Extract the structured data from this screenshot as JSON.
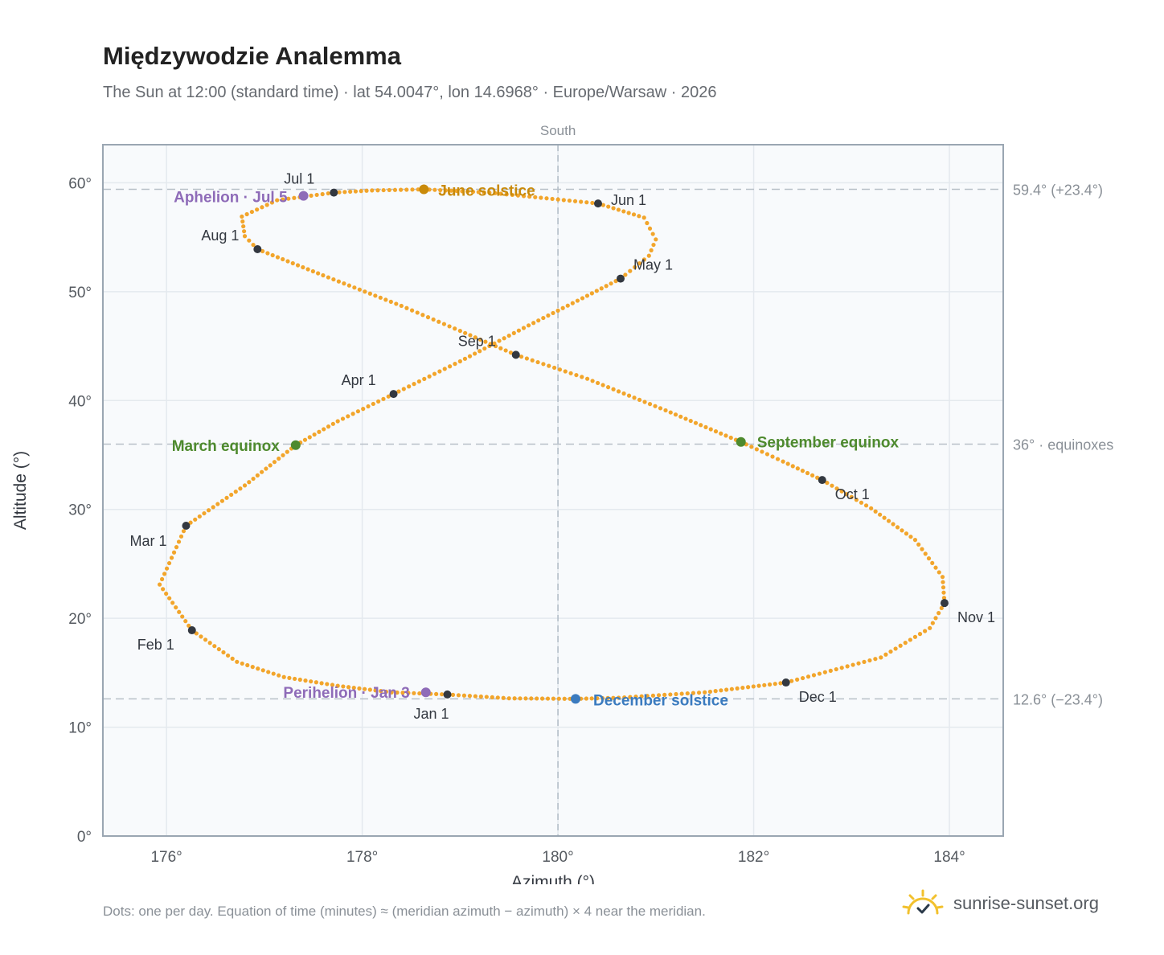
{
  "header": {
    "title": "Międzywodzie Analemma",
    "subtitle": "The Sun at 12:00 (standard time) · lat 54.0047°, lon 14.6968° · Europe/Warsaw · 2026"
  },
  "footer": {
    "note": "Dots: one per day. Equation of time (minutes) ≈ (meridian azimuth − azimuth) × 4 near the meridian.",
    "brand": "sunrise-sunset.org",
    "logo_icon": "sun-check-icon"
  },
  "chart_data": {
    "type": "scatter",
    "xlabel": "Azimuth (°)",
    "ylabel": "Altitude (°)",
    "xlim": [
      175.35,
      184.55
    ],
    "ylim": [
      0,
      63.5
    ],
    "xticks": [
      176,
      178,
      180,
      182,
      184
    ],
    "xtick_labels": [
      "176°",
      "178°",
      "180°",
      "182°",
      "184°"
    ],
    "yticks": [
      0,
      10,
      20,
      30,
      40,
      50,
      60
    ],
    "ytick_labels": [
      "0°",
      "10°",
      "20°",
      "30°",
      "40°",
      "50°",
      "60°"
    ],
    "grid": true,
    "meridian": {
      "x": 180,
      "label": "South"
    },
    "reference_lines": [
      {
        "y": 59.4,
        "label": "59.4° (+23.4°)"
      },
      {
        "y": 36.0,
        "label": "36° · equinoxes"
      },
      {
        "y": 12.6,
        "label": "12.6° (−23.4°)"
      }
    ],
    "daily_path": [
      [
        178.87,
        13.0
      ],
      [
        178.3,
        13.2
      ],
      [
        177.75,
        13.8
      ],
      [
        177.2,
        14.6
      ],
      [
        176.72,
        16.0
      ],
      [
        176.26,
        18.9
      ],
      [
        175.93,
        23.1
      ],
      [
        176.2,
        28.5
      ],
      [
        176.8,
        32.2
      ],
      [
        177.32,
        35.9
      ],
      [
        177.75,
        38.1
      ],
      [
        178.32,
        40.6
      ],
      [
        179.0,
        43.6
      ],
      [
        179.7,
        46.9
      ],
      [
        180.25,
        49.4
      ],
      [
        180.64,
        51.2
      ],
      [
        180.93,
        53.3
      ],
      [
        181.0,
        54.8
      ],
      [
        180.88,
        56.8
      ],
      [
        180.41,
        58.1
      ],
      [
        179.3,
        59.1
      ],
      [
        178.63,
        59.4
      ],
      [
        178.1,
        59.3
      ],
      [
        177.71,
        59.1
      ],
      [
        177.13,
        58.4
      ],
      [
        176.77,
        56.9
      ],
      [
        176.8,
        55.1
      ],
      [
        176.93,
        53.9
      ],
      [
        177.6,
        51.5
      ],
      [
        178.4,
        48.7
      ],
      [
        179.0,
        46.4
      ],
      [
        179.57,
        44.2
      ],
      [
        180.3,
        42.0
      ],
      [
        181.1,
        39.1
      ],
      [
        181.87,
        36.2
      ],
      [
        182.3,
        34.4
      ],
      [
        182.7,
        32.7
      ],
      [
        183.2,
        30.1
      ],
      [
        183.65,
        27.2
      ],
      [
        183.93,
        23.8
      ],
      [
        183.95,
        21.4
      ],
      [
        183.8,
        19.1
      ],
      [
        183.3,
        16.4
      ],
      [
        182.33,
        14.1
      ],
      [
        181.5,
        13.2
      ],
      [
        180.62,
        12.7
      ],
      [
        180.18,
        12.6
      ],
      [
        179.5,
        12.65
      ],
      [
        178.87,
        13.0
      ]
    ],
    "month_markers": [
      {
        "label": "Jan 1",
        "azimuth": 178.87,
        "altitude": 13.0
      },
      {
        "label": "Feb 1",
        "azimuth": 176.26,
        "altitude": 18.9
      },
      {
        "label": "Mar 1",
        "azimuth": 176.2,
        "altitude": 28.5
      },
      {
        "label": "Apr 1",
        "azimuth": 178.32,
        "altitude": 40.6
      },
      {
        "label": "May 1",
        "azimuth": 180.64,
        "altitude": 51.2
      },
      {
        "label": "Jun 1",
        "azimuth": 180.41,
        "altitude": 58.1
      },
      {
        "label": "Jul 1",
        "azimuth": 177.71,
        "altitude": 59.1
      },
      {
        "label": "Aug 1",
        "azimuth": 176.93,
        "altitude": 53.9
      },
      {
        "label": "Sep 1",
        "azimuth": 179.57,
        "altitude": 44.2
      },
      {
        "label": "Oct 1",
        "azimuth": 182.7,
        "altitude": 32.7
      },
      {
        "label": "Nov 1",
        "azimuth": 183.95,
        "altitude": 21.4
      },
      {
        "label": "Dec 1",
        "azimuth": 182.33,
        "altitude": 14.1
      }
    ],
    "events": [
      {
        "label": "June solstice",
        "azimuth": 178.63,
        "altitude": 59.4,
        "color": "#c98a0a"
      },
      {
        "label": "Aphelion · Jul 5",
        "azimuth": 177.4,
        "altitude": 58.8,
        "color": "#8e6bb8"
      },
      {
        "label": "March equinox",
        "azimuth": 177.32,
        "altitude": 35.9,
        "color": "#4e8a2e"
      },
      {
        "label": "September equinox",
        "azimuth": 181.87,
        "altitude": 36.2,
        "color": "#4e8a2e"
      },
      {
        "label": "Perihelion · Jan 3",
        "azimuth": 178.65,
        "altitude": 13.2,
        "color": "#8e6bb8"
      },
      {
        "label": "December solstice",
        "azimuth": 180.18,
        "altitude": 12.6,
        "color": "#3b7bbf"
      }
    ],
    "colors": {
      "path": "#f2a52b",
      "month_marker": "#333840",
      "plot_background": "#f8fafc",
      "reference_line": "#b8c0c8"
    }
  }
}
